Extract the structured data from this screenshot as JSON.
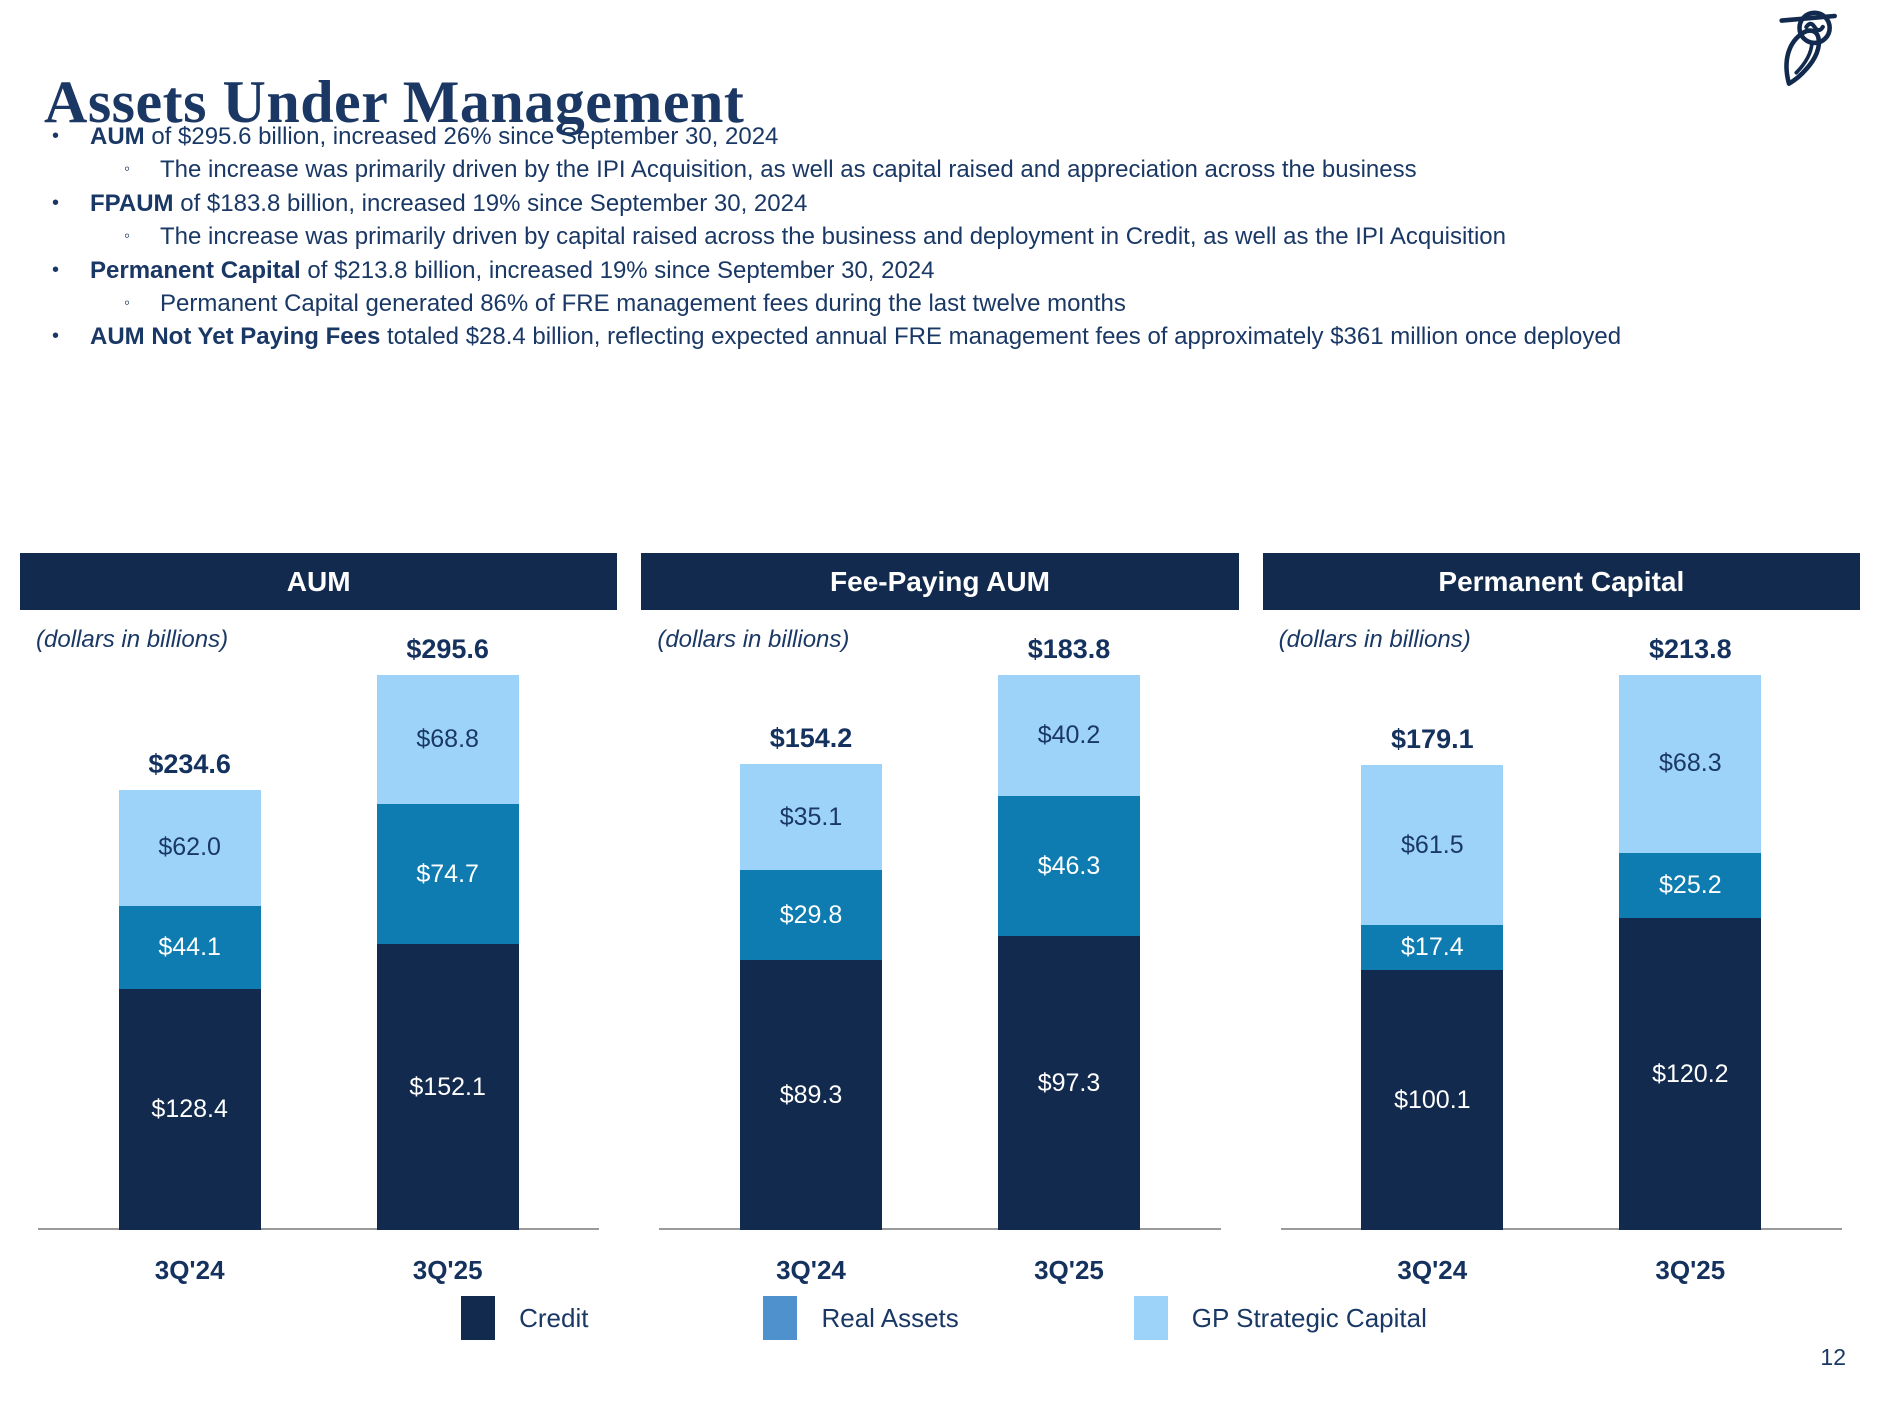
{
  "page": {
    "title": "Assets Under Management",
    "page_number": "12"
  },
  "bullets": {
    "marker_level1": "•",
    "marker_level2": "◦",
    "items": [
      {
        "level": 1,
        "bold": "AUM",
        "text": " of $295.6 billion, increased 26% since September 30, 2024"
      },
      {
        "level": 2,
        "bold": "",
        "text": "The increase was primarily driven by the IPI Acquisition, as well as capital raised and appreciation across the business"
      },
      {
        "level": 1,
        "bold": "FPAUM",
        "text": " of $183.8 billion, increased 19% since September 30, 2024"
      },
      {
        "level": 2,
        "bold": "",
        "text": "The increase was primarily driven by capital raised across the business and deployment in Credit, as well as the IPI Acquisition"
      },
      {
        "level": 1,
        "bold": "Permanent Capital",
        "text": " of $213.8 billion, increased 19% since September 30, 2024"
      },
      {
        "level": 2,
        "bold": "",
        "text": "Permanent Capital generated 86% of FRE management fees during the last twelve months"
      },
      {
        "level": 1,
        "bold": "AUM Not Yet Paying Fees",
        "text": " totaled $28.4 billion, reflecting expected annual FRE management fees of approximately $361 million once deployed"
      }
    ]
  },
  "colors": {
    "navy": "#122A4D",
    "text_navy": "#1A3865",
    "credit": "#122A4D",
    "real_assets": "#0E7CB0",
    "gp_strategic": "#9DD3F8",
    "legend_real_assets_swatch": "#4E91CC",
    "axis_gray": "#9A9A9A"
  },
  "chart_data": [
    {
      "type": "bar",
      "stacked": true,
      "title": "AUM",
      "subtitle": "(dollars in billions)",
      "categories": [
        "3Q'24",
        "3Q'25"
      ],
      "series": [
        {
          "name": "Credit",
          "values": [
            128.4,
            152.1
          ]
        },
        {
          "name": "Real Assets",
          "values": [
            44.1,
            74.7
          ]
        },
        {
          "name": "GP Strategic Capital",
          "values": [
            62.0,
            68.8
          ]
        }
      ],
      "totals": [
        234.6,
        295.6
      ],
      "value_prefix": "$",
      "legend_position": "bottom-shared",
      "grid": false
    },
    {
      "type": "bar",
      "stacked": true,
      "title": "Fee-Paying AUM",
      "subtitle": "(dollars in billions)",
      "categories": [
        "3Q'24",
        "3Q'25"
      ],
      "series": [
        {
          "name": "Credit",
          "values": [
            89.3,
            97.3
          ]
        },
        {
          "name": "Real Assets",
          "values": [
            29.8,
            46.3
          ]
        },
        {
          "name": "GP Strategic Capital",
          "values": [
            35.1,
            40.2
          ]
        }
      ],
      "totals": [
        154.2,
        183.8
      ],
      "value_prefix": "$",
      "legend_position": "bottom-shared",
      "grid": false
    },
    {
      "type": "bar",
      "stacked": true,
      "title": "Permanent Capital",
      "subtitle": "(dollars in billions)",
      "categories": [
        "3Q'24",
        "3Q'25"
      ],
      "series": [
        {
          "name": "Credit",
          "values": [
            100.1,
            120.2
          ]
        },
        {
          "name": "Real Assets",
          "values": [
            17.4,
            25.2
          ]
        },
        {
          "name": "GP Strategic Capital",
          "values": [
            61.5,
            68.3
          ]
        }
      ],
      "totals": [
        179.1,
        213.8
      ],
      "value_prefix": "$",
      "legend_position": "bottom-shared",
      "grid": false
    }
  ],
  "legend": {
    "items": [
      {
        "label": "Credit",
        "color": "#122A4D"
      },
      {
        "label": "Real Assets",
        "color": "#4E91CC"
      },
      {
        "label": "GP Strategic Capital",
        "color": "#9DD3F8"
      }
    ]
  }
}
